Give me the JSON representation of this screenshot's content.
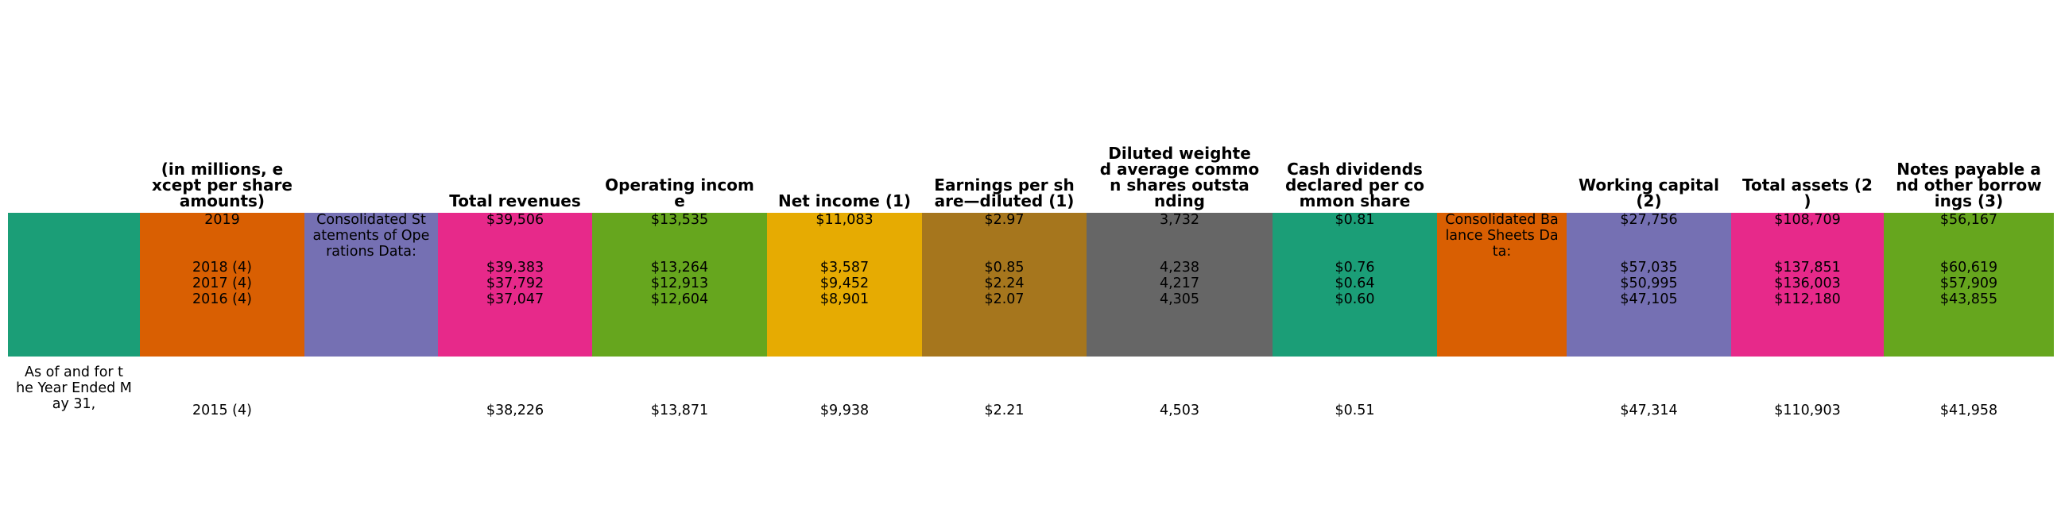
{
  "chart_data": {
    "type": "table",
    "column_colors": [
      "#1b9e77",
      "#d95f02",
      "#7570b3",
      "#e7298a",
      "#66a61e",
      "#e6ab02",
      "#a6761d",
      "#666666",
      "#1b9e77",
      "#d95f02",
      "#7570b3",
      "#e7298a",
      "#66a61e"
    ],
    "header_lines": [
      [],
      [
        "(in millions, e",
        "xcept per share",
        "amounts)"
      ],
      [],
      [
        "Total revenues"
      ],
      [
        "Operating incom",
        "e"
      ],
      [
        "Net income (1)"
      ],
      [
        "Earnings per sh",
        "are—diluted (1)"
      ],
      [
        "Diluted weighte",
        "d average commo",
        "n shares outsta",
        "nding"
      ],
      [
        "Cash dividends",
        "declared per co",
        "mmon share"
      ],
      [],
      [
        "Working capital",
        "(2)"
      ],
      [
        "Total assets (2",
        ")"
      ],
      [
        "Notes payable a",
        "nd other borrow",
        "ings (3)"
      ]
    ],
    "columns": [
      {
        "groups": [
          {
            "slot": 3.2,
            "lines": [
              "As of and for t",
              "he Year Ended M",
              "ay 31,"
            ]
          }
        ]
      },
      {
        "groups": [
          {
            "slot": 0,
            "lines": [
              "2019"
            ]
          },
          {
            "slot": 1,
            "lines": [
              "2018 (4)",
              "2017 (4)",
              "2016 (4)"
            ]
          },
          {
            "slot": 4,
            "lines": [
              "2015 (4)"
            ]
          }
        ]
      },
      {
        "groups": [
          {
            "slot": 0,
            "lines": [
              "Consolidated St",
              "atements of Ope",
              "rations Data:"
            ]
          }
        ]
      },
      {
        "groups": [
          {
            "slot": 0,
            "lines": [
              "$39,506"
            ]
          },
          {
            "slot": 1,
            "lines": [
              "$39,383",
              "$37,792",
              "$37,047"
            ]
          },
          {
            "slot": 4,
            "lines": [
              "$38,226"
            ]
          }
        ]
      },
      {
        "groups": [
          {
            "slot": 0,
            "lines": [
              "$13,535"
            ]
          },
          {
            "slot": 1,
            "lines": [
              "$13,264",
              "$12,913",
              "$12,604"
            ]
          },
          {
            "slot": 4,
            "lines": [
              "$13,871"
            ]
          }
        ]
      },
      {
        "groups": [
          {
            "slot": 0,
            "lines": [
              "$11,083"
            ]
          },
          {
            "slot": 1,
            "lines": [
              "$3,587",
              "$9,452",
              "$8,901"
            ]
          },
          {
            "slot": 4,
            "lines": [
              "$9,938"
            ]
          }
        ]
      },
      {
        "groups": [
          {
            "slot": 0,
            "lines": [
              "$2.97"
            ]
          },
          {
            "slot": 1,
            "lines": [
              "$0.85",
              "$2.24",
              "$2.07"
            ]
          },
          {
            "slot": 4,
            "lines": [
              "$2.21"
            ]
          }
        ]
      },
      {
        "groups": [
          {
            "slot": 0,
            "lines": [
              "3,732"
            ]
          },
          {
            "slot": 1,
            "lines": [
              "4,238",
              "4,217",
              "4,305"
            ]
          },
          {
            "slot": 4,
            "lines": [
              "4,503"
            ]
          }
        ]
      },
      {
        "groups": [
          {
            "slot": 0,
            "lines": [
              "$0.81"
            ]
          },
          {
            "slot": 1,
            "lines": [
              "$0.76",
              "$0.64",
              "$0.60"
            ]
          },
          {
            "slot": 4,
            "lines": [
              "$0.51"
            ]
          }
        ]
      },
      {
        "groups": [
          {
            "slot": 0,
            "lines": [
              "Consolidated Ba",
              "lance Sheets Da",
              "ta:"
            ]
          }
        ]
      },
      {
        "groups": [
          {
            "slot": 0,
            "lines": [
              "$27,756"
            ]
          },
          {
            "slot": 1,
            "lines": [
              "$57,035",
              "$50,995",
              "$47,105"
            ]
          },
          {
            "slot": 4,
            "lines": [
              "$47,314"
            ]
          }
        ]
      },
      {
        "groups": [
          {
            "slot": 0,
            "lines": [
              "$108,709"
            ]
          },
          {
            "slot": 1,
            "lines": [
              "$137,851",
              "$136,003",
              "$112,180"
            ]
          },
          {
            "slot": 4,
            "lines": [
              "$110,903"
            ]
          }
        ]
      },
      {
        "groups": [
          {
            "slot": 0,
            "lines": [
              "$56,167"
            ]
          },
          {
            "slot": 1,
            "lines": [
              "$60,619",
              "$57,909",
              "$43,855"
            ]
          },
          {
            "slot": 4,
            "lines": [
              "$41,958"
            ]
          }
        ]
      }
    ]
  }
}
